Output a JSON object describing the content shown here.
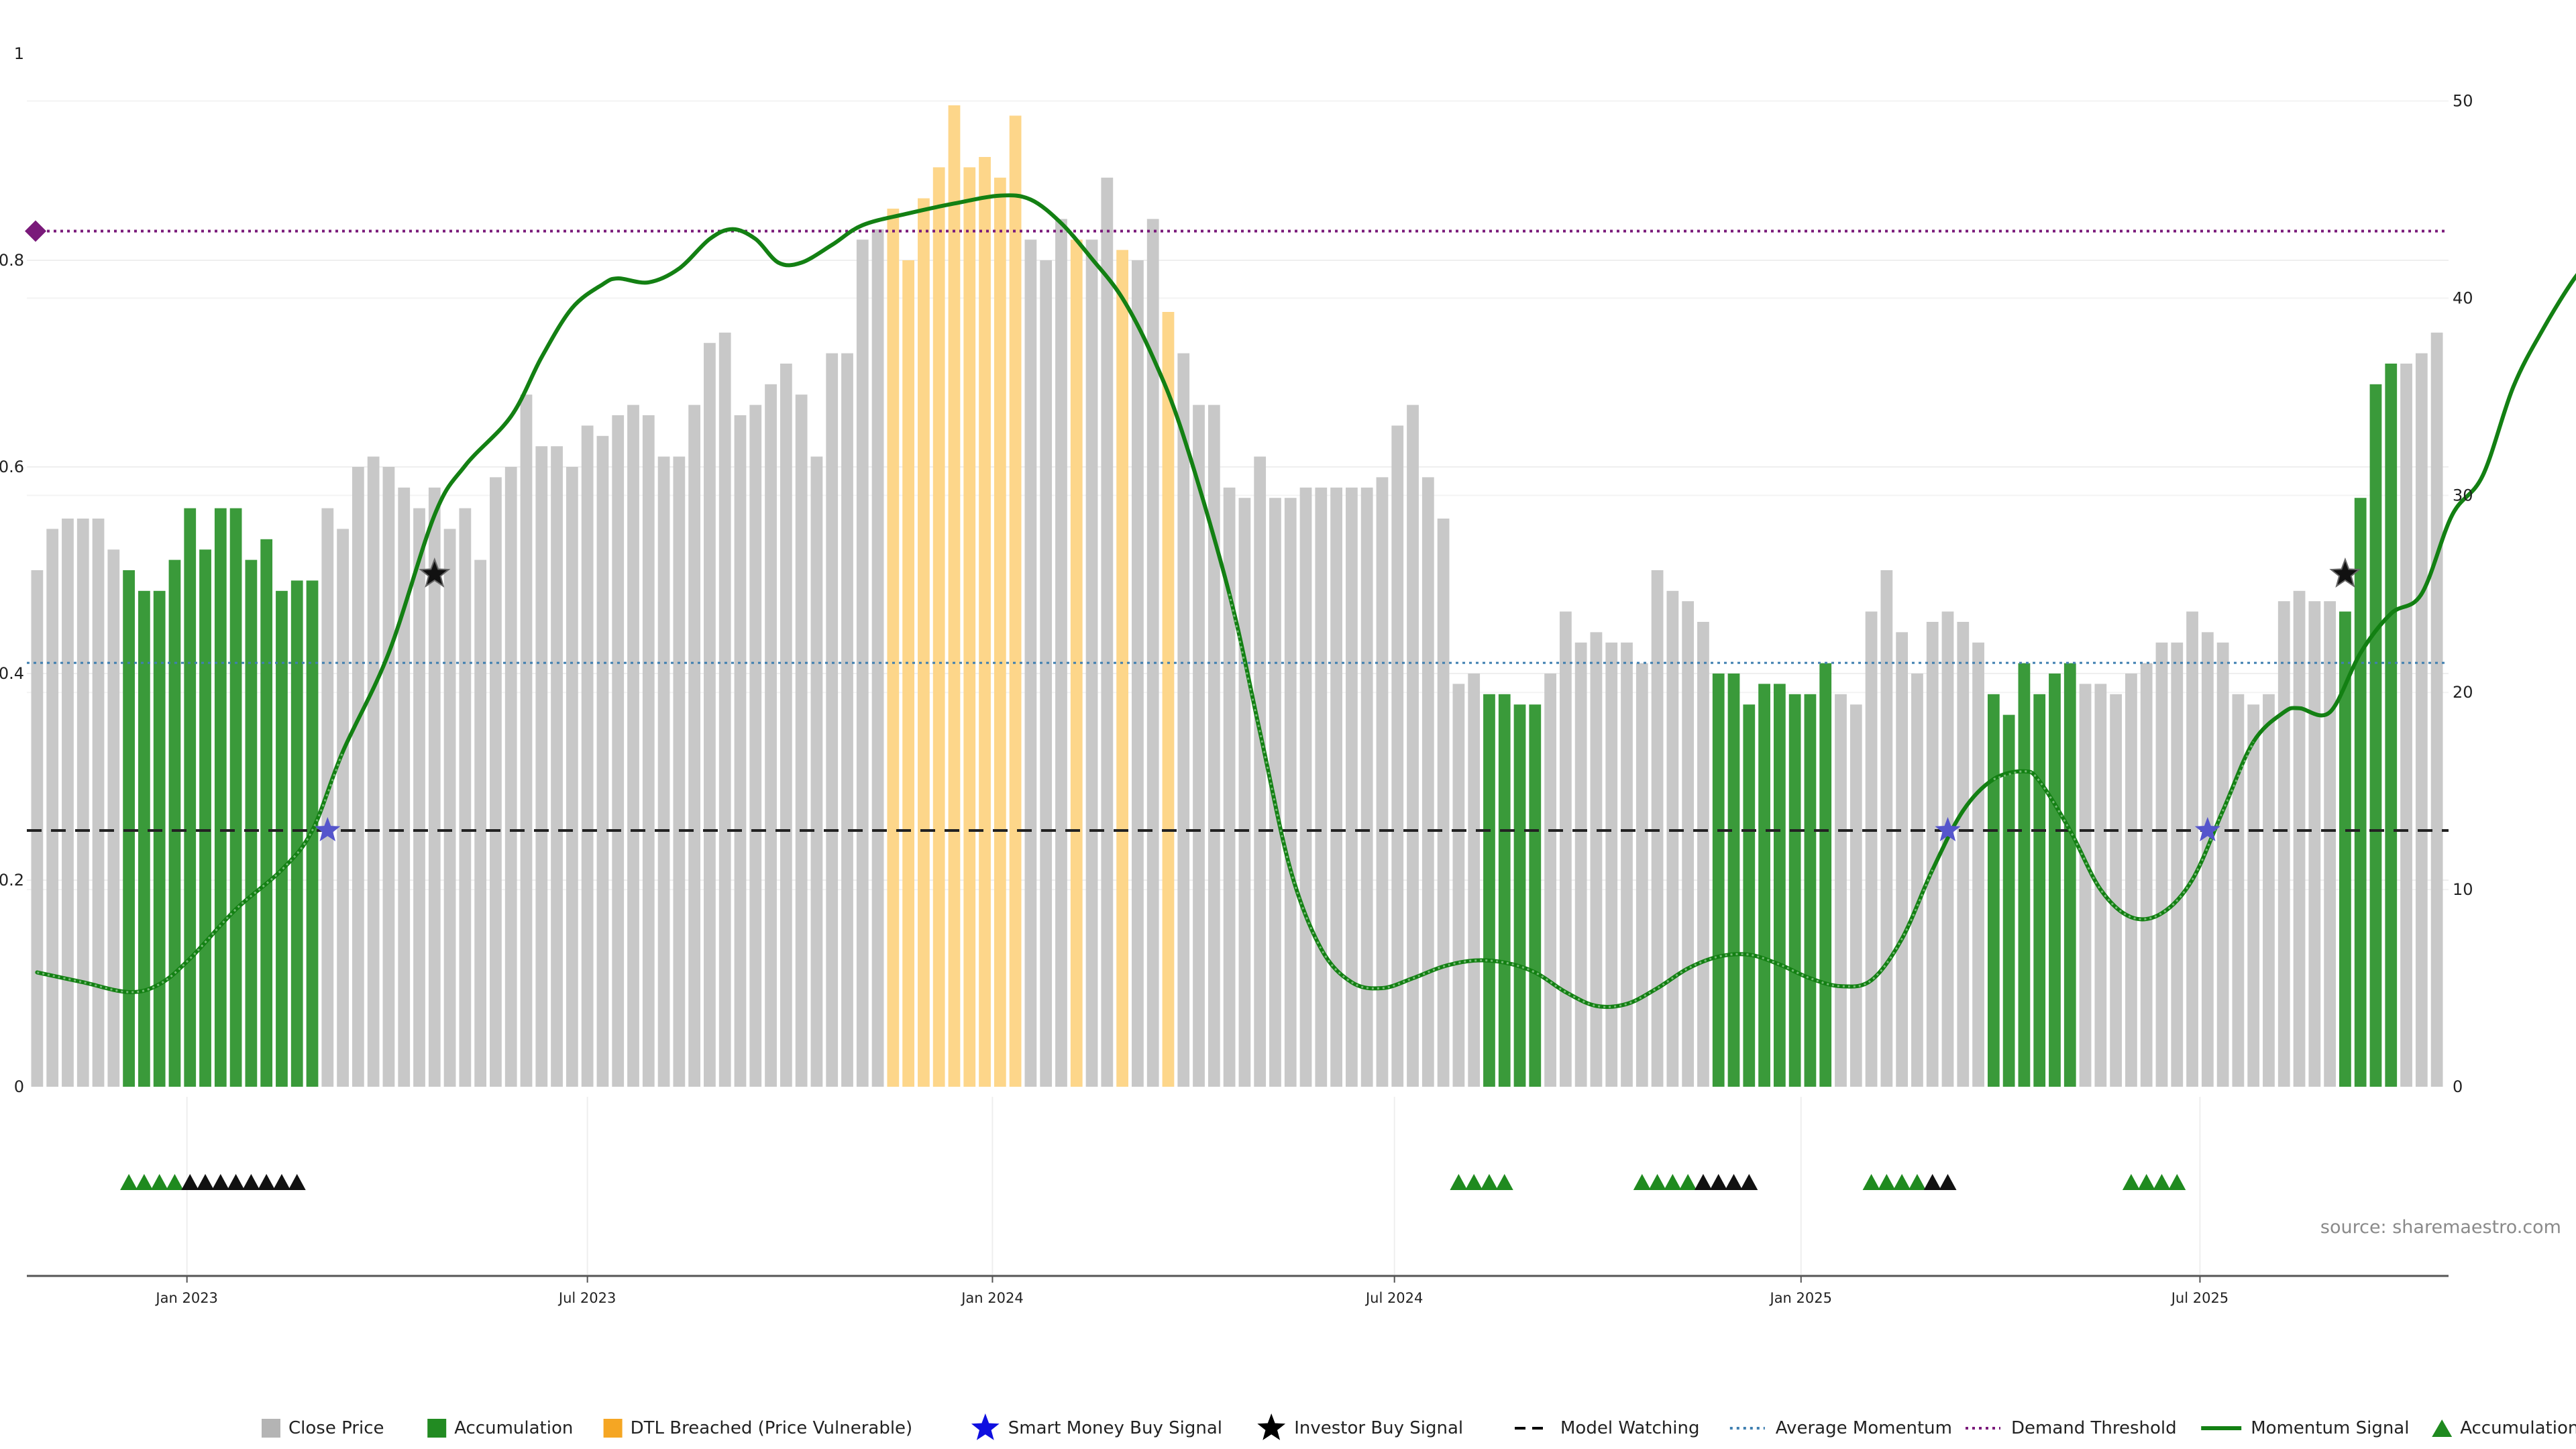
{
  "source_label": "source: sharemaestro.com",
  "colors": {
    "close": "#c8c8c8",
    "accumulation": "#3a9a3a",
    "dtl": "#fdd68a",
    "momentum": "#138013",
    "momentum_weak": "#4a9a4a",
    "smart_star": "#5555cc",
    "investor_star": "#111111",
    "model_watching": "#222222",
    "avg_momentum": "#3f7fb0",
    "demand": "#7a1a7a",
    "tri_green": "#1f8a1f",
    "tri_black": "#111111"
  },
  "legend": [
    {
      "label": "Close Price",
      "kind": "square",
      "color": "#b4b4b4"
    },
    {
      "label": "Accumulation",
      "kind": "square",
      "color": "#228b22"
    },
    {
      "label": "DTL Breached (Price Vulnerable)",
      "kind": "square",
      "color": "#f5a623"
    },
    {
      "label": "Smart Money Buy Signal",
      "kind": "star",
      "color": "#1010e0"
    },
    {
      "label": "Investor Buy Signal",
      "kind": "star",
      "color": "#000000"
    },
    {
      "label": "Model Watching",
      "kind": "dash",
      "color": "#000000"
    },
    {
      "label": "Average Momentum",
      "kind": "dot",
      "color": "#3f7fb0"
    },
    {
      "label": "Demand Threshold",
      "kind": "dot",
      "color": "#7a1a7a"
    },
    {
      "label": "Momentum Signal",
      "kind": "line",
      "color": "#138013"
    },
    {
      "label": "Accumulation",
      "kind": "triangle",
      "color": "#1f8a1f"
    }
  ],
  "chart_data": {
    "type": "bar",
    "x_tick_labels": [
      "Jan 2023",
      "Jul 2023",
      "Jan 2024",
      "Jul 2024",
      "Jan 2025",
      "Jul 2025"
    ],
    "x_tick_weeks": [
      9.8,
      36,
      62.5,
      88.8,
      115.4,
      141.5
    ],
    "left_axis": {
      "ticks": [
        "0",
        "0.2",
        "0.4",
        "0.6",
        "0.8",
        "1"
      ],
      "range": [
        0,
        1
      ]
    },
    "right_axis": {
      "ticks": [
        "0",
        "10",
        "20",
        "30",
        "40",
        "50"
      ],
      "range": [
        0,
        52.4
      ]
    },
    "bar_heights": [
      0.5,
      0.54,
      0.55,
      0.55,
      0.55,
      0.52,
      0.5,
      0.48,
      0.48,
      0.51,
      0.56,
      0.52,
      0.56,
      0.56,
      0.51,
      0.53,
      0.48,
      0.49,
      0.49,
      0.56,
      0.54,
      0.6,
      0.61,
      0.6,
      0.58,
      0.56,
      0.58,
      0.54,
      0.56,
      0.51,
      0.59,
      0.6,
      0.67,
      0.62,
      0.62,
      0.6,
      0.64,
      0.63,
      0.65,
      0.66,
      0.65,
      0.61,
      0.61,
      0.66,
      0.72,
      0.73,
      0.65,
      0.66,
      0.68,
      0.7,
      0.67,
      0.61,
      0.71,
      0.71,
      0.82,
      0.83,
      0.85,
      0.8,
      0.86,
      0.89,
      0.95,
      0.89,
      0.9,
      0.88,
      0.94,
      0.82,
      0.8,
      0.84,
      0.82,
      0.82,
      0.88,
      0.81,
      0.8,
      0.84,
      0.75,
      0.71,
      0.66,
      0.66,
      0.58,
      0.57,
      0.61,
      0.57,
      0.57,
      0.58,
      0.58,
      0.58,
      0.58,
      0.58,
      0.59,
      0.64,
      0.66,
      0.59,
      0.55,
      0.39,
      0.4,
      0.38,
      0.38,
      0.37,
      0.37,
      0.4,
      0.46,
      0.43,
      0.44,
      0.43,
      0.43,
      0.41,
      0.5,
      0.48,
      0.47,
      0.45,
      0.4,
      0.4,
      0.37,
      0.39,
      0.39,
      0.38,
      0.38,
      0.41,
      0.38,
      0.37,
      0.46,
      0.5,
      0.44,
      0.4,
      0.45,
      0.46,
      0.45,
      0.43,
      0.38,
      0.36,
      0.41,
      0.38,
      0.4,
      0.41,
      0.39,
      0.39,
      0.38,
      0.4,
      0.41,
      0.43,
      0.43,
      0.46,
      0.44,
      0.43,
      0.38,
      0.37,
      0.38,
      0.47,
      0.48,
      0.47,
      0.47,
      0.46,
      0.57,
      0.68,
      0.7,
      0.7,
      0.71,
      0.73
    ],
    "bar_status": "CCCCCCAAAAAAAAAAAAACCCCCCCCCCCCCCCCCCCCCCCCCCCCCCCCCCCCCDDDDDDDDDCCCDCCDCCDCCCCCCCCCCCCCCCCCCCCAAAACCCCCCCCCCCAAAAAAAACCCCCCCCCCAAAAAACCCCCCCCCCCCCCCCCAAAACCCCCCCCCCCCCCCCC",
    "momentum_signal": [
      [
        0,
        5.8
      ],
      [
        3,
        5.3
      ],
      [
        6,
        4.8
      ],
      [
        8,
        5.2
      ],
      [
        10,
        6.5
      ],
      [
        13,
        9
      ],
      [
        16,
        11
      ],
      [
        18,
        13
      ],
      [
        20,
        17
      ],
      [
        23,
        22
      ],
      [
        26,
        29
      ],
      [
        28,
        31.5
      ],
      [
        31,
        34
      ],
      [
        33,
        37
      ],
      [
        35,
        39.5
      ],
      [
        37,
        40.7
      ],
      [
        38,
        41
      ],
      [
        40,
        40.8
      ],
      [
        42,
        41.5
      ],
      [
        44,
        43
      ],
      [
        45.5,
        43.5
      ],
      [
        47,
        43
      ],
      [
        48.5,
        41.8
      ],
      [
        50,
        41.8
      ],
      [
        52,
        42.7
      ],
      [
        54,
        43.7
      ],
      [
        57,
        44.3
      ],
      [
        60,
        44.8
      ],
      [
        63,
        45.2
      ],
      [
        65,
        45
      ],
      [
        67,
        43.8
      ],
      [
        69,
        42
      ],
      [
        71,
        40
      ],
      [
        73,
        37
      ],
      [
        75,
        33
      ],
      [
        78,
        25
      ],
      [
        80,
        18
      ],
      [
        82,
        11
      ],
      [
        84,
        7
      ],
      [
        86,
        5.3
      ],
      [
        88,
        5
      ],
      [
        90,
        5.5
      ],
      [
        92,
        6.1
      ],
      [
        94,
        6.4
      ],
      [
        96,
        6.3
      ],
      [
        98,
        5.8
      ],
      [
        100,
        4.8
      ],
      [
        102,
        4.1
      ],
      [
        104,
        4.2
      ],
      [
        106,
        5
      ],
      [
        108,
        6
      ],
      [
        110,
        6.6
      ],
      [
        112,
        6.7
      ],
      [
        114,
        6.2
      ],
      [
        116,
        5.5
      ],
      [
        118,
        5.1
      ],
      [
        120,
        5.4
      ],
      [
        122,
        7.5
      ],
      [
        124,
        11
      ],
      [
        126,
        14
      ],
      [
        128,
        15.6
      ],
      [
        130,
        16
      ],
      [
        131,
        15.5
      ],
      [
        133,
        13
      ],
      [
        135,
        10
      ],
      [
        137,
        8.6
      ],
      [
        139,
        8.8
      ],
      [
        141,
        10.5
      ],
      [
        143,
        14
      ],
      [
        145,
        17.5
      ],
      [
        147,
        19
      ],
      [
        148,
        19.2
      ],
      [
        150,
        19
      ],
      [
        152,
        22
      ],
      [
        154,
        24
      ],
      [
        156,
        25
      ],
      [
        158,
        29
      ],
      [
        160,
        31
      ],
      [
        162,
        35.5
      ],
      [
        164,
        38.5
      ],
      [
        166,
        41
      ],
      [
        167,
        41.8
      ]
    ],
    "momentum_weak_segments": [
      [
        0,
        20
      ],
      [
        78,
        124
      ],
      [
        127,
        145
      ]
    ],
    "average_momentum": 21.5,
    "model_watching": 13,
    "demand_threshold": 43.4,
    "smart_money_buy_signals": [
      [
        19,
        13
      ],
      [
        125,
        13
      ],
      [
        142,
        13
      ]
    ],
    "investor_buy_signals": [
      [
        26,
        26
      ],
      [
        151,
        26
      ]
    ],
    "accumulation_triangles": "GGGGBBBBBBBB@93:GGGG@105:GGGGBBBB@120:GGGGBB@137:GGGG"
  }
}
